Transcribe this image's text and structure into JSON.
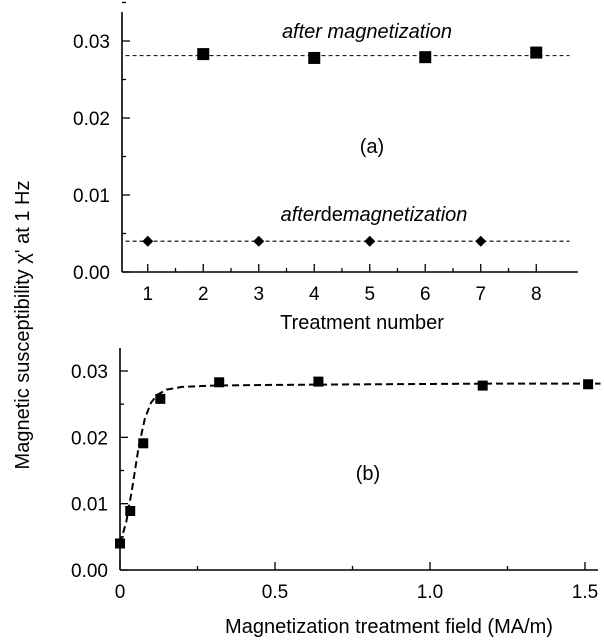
{
  "y_axis_label": "Magnetic susceptibility χ' at 1 Hz",
  "chart_data": [
    {
      "panel": "(a)",
      "type": "scatter",
      "xlabel": "Treatment number",
      "ylabel": "Magnetic susceptibility χ' at 1 Hz",
      "xlim": [
        0,
        8.5
      ],
      "ylim": [
        0,
        0.035
      ],
      "x_ticks": [
        "1",
        "2",
        "3",
        "4",
        "5",
        "6",
        "7",
        "8"
      ],
      "y_ticks": [
        "0.00",
        "0.01",
        "0.02",
        "0.03"
      ],
      "y_tick_values": [
        0.0,
        0.01,
        0.02,
        0.03
      ],
      "grid": false,
      "annotations": [
        {
          "text_italic": "after magnetization",
          "text_regular": ""
        },
        {
          "text_italic": "after",
          "text_regular": "de",
          "text_italic2": "magnetization"
        }
      ],
      "series": [
        {
          "marker": "square",
          "x": [
            2,
            4,
            6,
            8
          ],
          "y": [
            0.0283,
            0.0278,
            0.0279,
            0.0285
          ],
          "reference_line": {
            "y": 0.0281,
            "x_range": [
              0.6,
              8.6
            ],
            "style": "dashed"
          }
        },
        {
          "marker": "diamond",
          "x": [
            1,
            3,
            5,
            7
          ],
          "y": [
            0.004,
            0.004,
            0.004,
            0.004
          ],
          "reference_line": {
            "y": 0.004,
            "x_range": [
              0.6,
              8.6
            ],
            "style": "dashed"
          }
        }
      ]
    },
    {
      "panel": "(b)",
      "type": "scatter",
      "xlabel": "Magnetization treatment field (MA/m)",
      "ylabel": "Magnetic susceptibility χ' at 1 Hz",
      "xlim": [
        0,
        1.55
      ],
      "ylim": [
        0,
        0.034
      ],
      "x_ticks": [
        "0",
        "0.5",
        "1.0",
        "1.5"
      ],
      "x_tick_values": [
        0,
        0.5,
        1.0,
        1.5
      ],
      "y_ticks": [
        "0.00",
        "0.01",
        "0.02",
        "0.03"
      ],
      "y_tick_values": [
        0.0,
        0.01,
        0.02,
        0.03
      ],
      "grid": false,
      "series": [
        {
          "marker": "square",
          "x": [
            0.0,
            0.033,
            0.075,
            0.13,
            0.32,
            0.64,
            1.17,
            1.51
          ],
          "y": [
            0.004,
            0.0089,
            0.0191,
            0.0258,
            0.0283,
            0.0284,
            0.0278,
            0.028
          ]
        }
      ],
      "fit_line": {
        "style": "dashed",
        "x": [
          0.0,
          0.02,
          0.04,
          0.06,
          0.08,
          0.1,
          0.12,
          0.15,
          0.2,
          0.3,
          0.5,
          0.8,
          1.2,
          1.55
        ],
        "y": [
          0.004,
          0.0072,
          0.0125,
          0.0185,
          0.0228,
          0.0252,
          0.0264,
          0.0272,
          0.0276,
          0.0278,
          0.0279,
          0.028,
          0.0281,
          0.0281
        ]
      }
    }
  ]
}
